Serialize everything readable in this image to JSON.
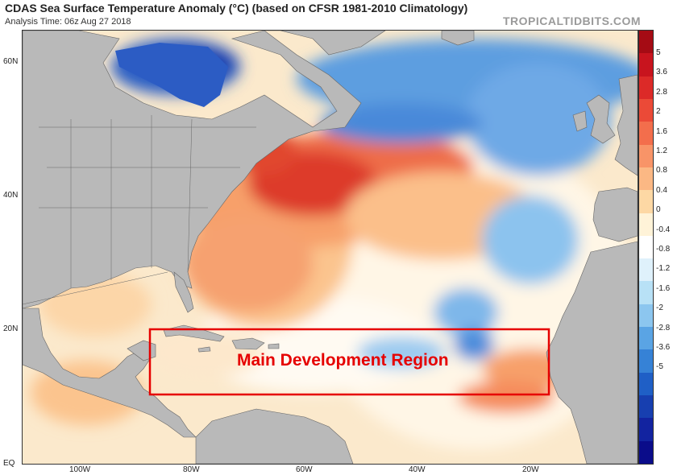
{
  "header": {
    "title": "CDAS Sea Surface Temperature Anomaly (°C) (based on CFSR 1981-2010 Climatology)",
    "analysis_time": "Analysis Time: 06z Aug 27 2018",
    "brand": "TROPICALTIDBITS.COM"
  },
  "map": {
    "lat_labels": [
      "60N",
      "40N",
      "20N",
      "EQ"
    ],
    "lon_labels": [
      "100W",
      "80W",
      "60W",
      "40W",
      "20W"
    ],
    "annotation": "Main Development Region",
    "annotation_color": "#e60000",
    "land_color": "#b9b9b9"
  },
  "colorbar": {
    "labels": [
      "5",
      "3.6",
      "2.8",
      "2",
      "1.6",
      "1.2",
      "0.8",
      "0.4",
      "0",
      "-0.4",
      "-0.8",
      "-1.2",
      "-1.6",
      "-2",
      "-2.8",
      "-3.6",
      "-5"
    ],
    "colors": [
      "#a50b14",
      "#c8141e",
      "#dc2a28",
      "#eb4a37",
      "#f36e4c",
      "#f89468",
      "#fbb884",
      "#fdd8a4",
      "#fff3d8",
      "#ffffff",
      "#dff1fb",
      "#b8e1f6",
      "#8cc6ef",
      "#5aa4e4",
      "#3682d6",
      "#1f5fc6",
      "#173fb0",
      "#1223a0",
      "#0a0c8a"
    ]
  }
}
